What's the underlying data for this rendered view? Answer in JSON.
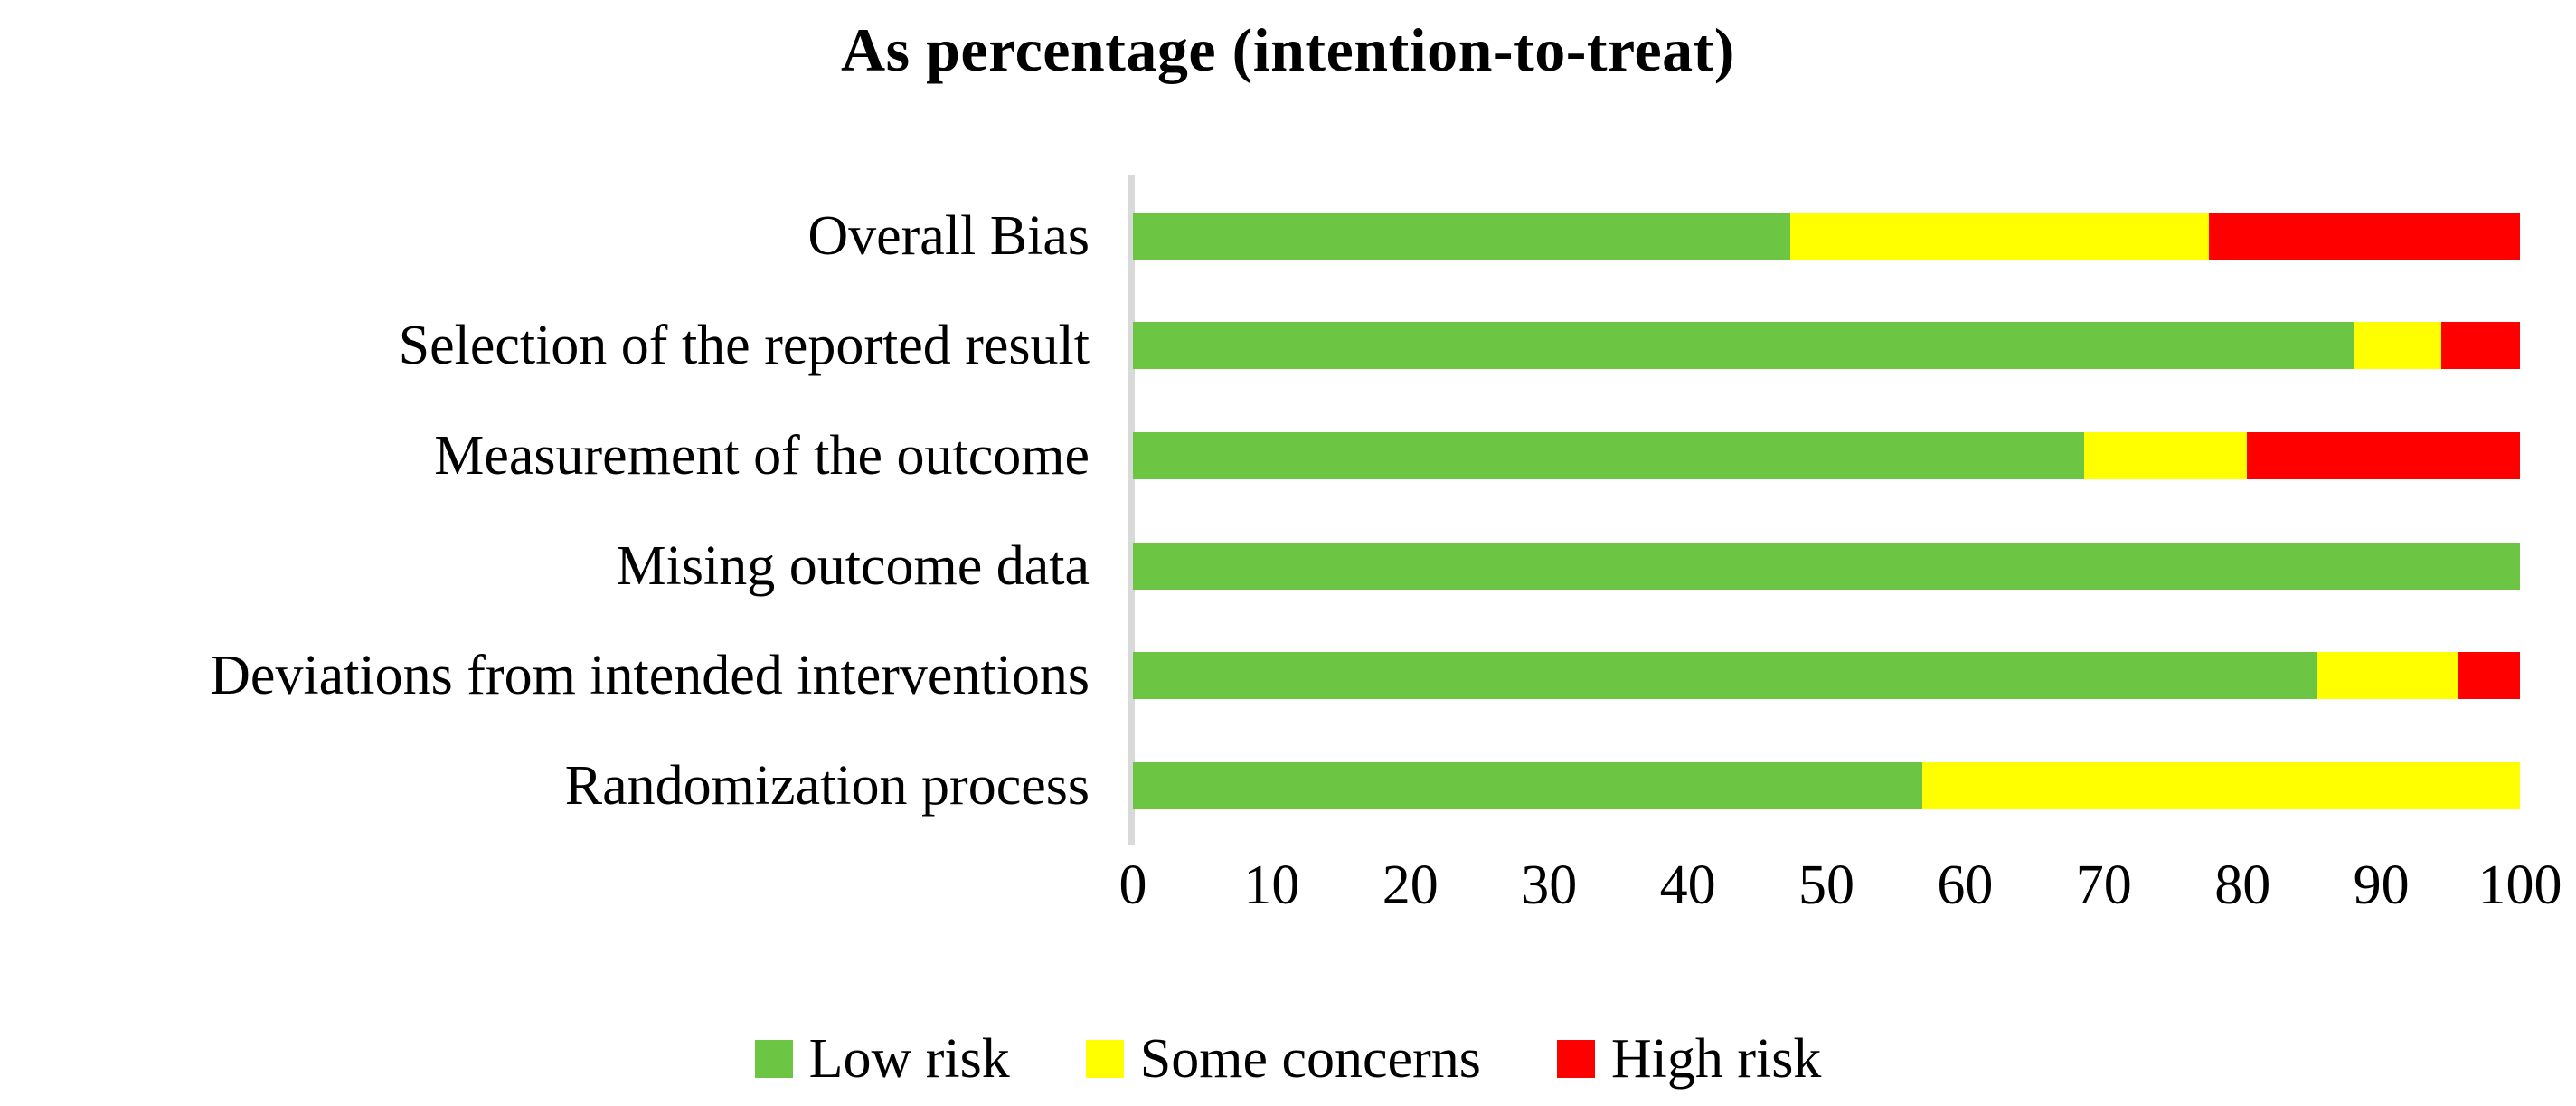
{
  "chart_data": {
    "type": "bar",
    "orientation": "horizontal",
    "stacked": true,
    "title": "As percentage (intention-to-treat)",
    "categories_top_to_bottom": [
      "Overall Bias",
      "Selection of the reported result",
      "Measurement of the outcome",
      "Mising outcome data",
      "Deviations from intended interventions",
      "Randomization process"
    ],
    "series": [
      {
        "name": "Low risk",
        "color": "#6CC644",
        "values": [
          47.4,
          88.1,
          68.6,
          100,
          85.4,
          56.9
        ]
      },
      {
        "name": "Some concerns",
        "color": "#FFFF00",
        "values": [
          30.2,
          6.2,
          11.7,
          0,
          10.1,
          43.1
        ]
      },
      {
        "name": "High risk",
        "color": "#FF0000",
        "values": [
          22.4,
          5.7,
          19.7,
          0,
          4.5,
          0
        ]
      }
    ],
    "x_axis": {
      "min": 0,
      "max": 100,
      "tick_interval": 10,
      "tick_labels": [
        "0",
        "10",
        "20",
        "30",
        "40",
        "50",
        "60",
        "70",
        "80",
        "90",
        "100"
      ]
    },
    "legend": {
      "position": "bottom",
      "entries": [
        "Low risk",
        "Some concerns",
        "High risk"
      ]
    },
    "grid": false,
    "axis_line_color": "#D9D9D9",
    "background_color": "#FFFFFF"
  }
}
